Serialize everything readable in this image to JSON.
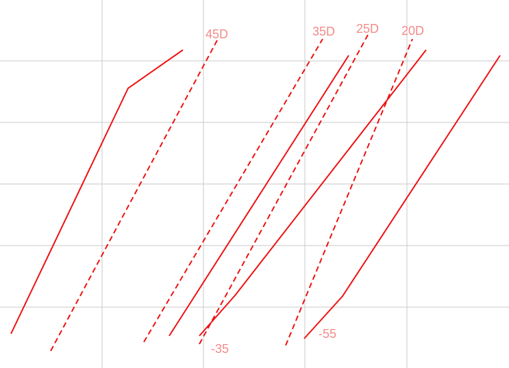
{
  "labels": [
    "45D",
    "35D",
    "25D",
    "20D",
    "-35",
    "-55"
  ]
}
